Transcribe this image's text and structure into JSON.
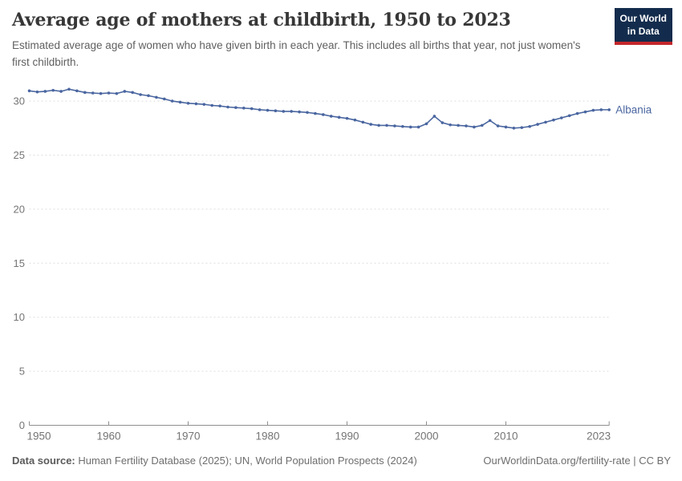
{
  "header": {
    "title": "Average age of mothers at childbirth, 1950 to 2023",
    "subtitle": "Estimated average age of women who have given birth in each year. This includes all births that year, not just women's first childbirth.",
    "logo": {
      "line1": "Our World",
      "line2": "in Data"
    }
  },
  "footer": {
    "source_label": "Data source:",
    "source_text": " Human Fertility Database (2025); UN, World Population Prospects (2024)",
    "link_text": "OurWorldinData.org/fertility-rate | CC BY"
  },
  "colors": {
    "accent_blue": "#4a66a0",
    "grid": "#dedede",
    "axis": "#8f8f8f",
    "tick_label": "#757575",
    "title": "#373737",
    "subtitle": "#606060",
    "footer": "#6e6e6e",
    "logo_bg": "#132c4d",
    "logo_bar": "#c3272b"
  },
  "chart_data": {
    "type": "line",
    "title": "Average age of mothers at childbirth, 1950 to 2023",
    "xlabel": "",
    "ylabel": "",
    "xlim": [
      1950,
      2023
    ],
    "ylim": [
      0,
      31.6
    ],
    "x_ticks": [
      1950,
      1960,
      1970,
      1980,
      1990,
      2000,
      2010,
      2023
    ],
    "y_ticks": [
      0,
      5,
      10,
      15,
      20,
      25,
      30
    ],
    "grid": "horizontal-dashed",
    "legend": "line-end-label",
    "x": [
      1950,
      1951,
      1952,
      1953,
      1954,
      1955,
      1956,
      1957,
      1958,
      1959,
      1960,
      1961,
      1962,
      1963,
      1964,
      1965,
      1966,
      1967,
      1968,
      1969,
      1970,
      1971,
      1972,
      1973,
      1974,
      1975,
      1976,
      1977,
      1978,
      1979,
      1980,
      1981,
      1982,
      1983,
      1984,
      1985,
      1986,
      1987,
      1988,
      1989,
      1990,
      1991,
      1992,
      1993,
      1994,
      1995,
      1996,
      1997,
      1998,
      1999,
      2000,
      2001,
      2002,
      2003,
      2004,
      2005,
      2006,
      2007,
      2008,
      2009,
      2010,
      2011,
      2012,
      2013,
      2014,
      2015,
      2016,
      2017,
      2018,
      2019,
      2020,
      2021,
      2022,
      2023
    ],
    "series": [
      {
        "name": "Albania",
        "color": "#4a66a0",
        "values": [
          30.95,
          30.85,
          30.9,
          31.0,
          30.9,
          31.1,
          30.95,
          30.8,
          30.75,
          30.7,
          30.75,
          30.7,
          30.9,
          30.8,
          30.6,
          30.5,
          30.35,
          30.2,
          30.0,
          29.9,
          29.8,
          29.75,
          29.7,
          29.6,
          29.55,
          29.45,
          29.4,
          29.35,
          29.3,
          29.2,
          29.15,
          29.1,
          29.05,
          29.05,
          29.0,
          28.95,
          28.85,
          28.75,
          28.6,
          28.5,
          28.4,
          28.25,
          28.05,
          27.85,
          27.75,
          27.75,
          27.7,
          27.65,
          27.6,
          27.6,
          27.9,
          28.6,
          28.0,
          27.8,
          27.75,
          27.7,
          27.6,
          27.75,
          28.2,
          27.7,
          27.6,
          27.5,
          27.55,
          27.65,
          27.85,
          28.05,
          28.25,
          28.45,
          28.65,
          28.85,
          29.0,
          29.15,
          29.2,
          29.2
        ]
      }
    ]
  }
}
